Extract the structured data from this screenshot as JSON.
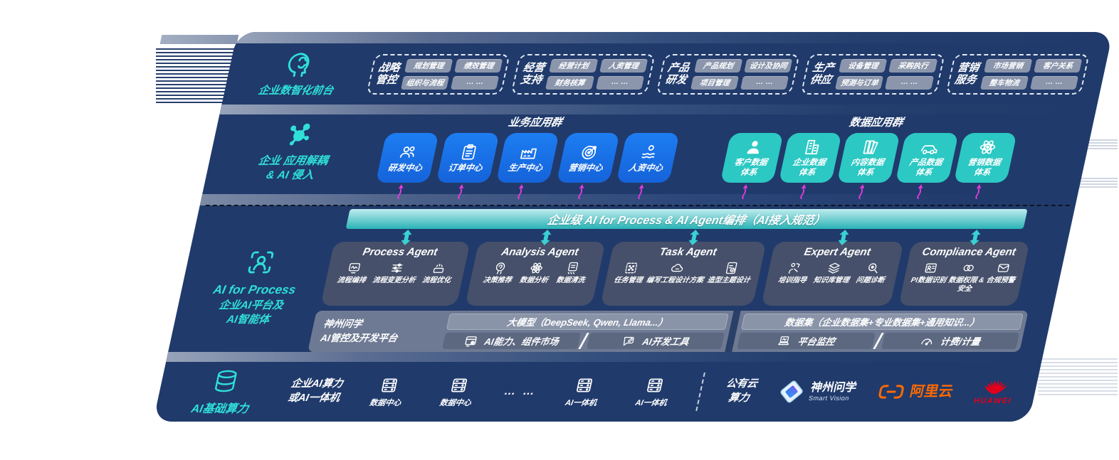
{
  "colors": {
    "accent_teal": "#2fe0d8",
    "box_blue": "#1b74ec",
    "box_teal": "#2cc8c3",
    "banner_teal": "#2ab3b6",
    "arrow_pink": "#e33bdd",
    "navy": "#203a6b",
    "aliyun_orange": "#ff6a00",
    "huawei_red": "#e2001a"
  },
  "front": {
    "label": "企业数智化前台",
    "groups": [
      {
        "name": "战略\n管控",
        "chips": [
          "规划管理",
          "绩效管理",
          "组织与流程",
          "… …"
        ]
      },
      {
        "name": "经营\n支持",
        "chips": [
          "经营计划",
          "人资管理",
          "财务核算",
          "… …"
        ]
      },
      {
        "name": "产品\n研发",
        "chips": [
          "产品规划",
          "设计及协同",
          "项目管理",
          "… …"
        ]
      },
      {
        "name": "生产\n供应",
        "chips": [
          "设备管理",
          "采购执行",
          "预测与订单",
          "… …"
        ]
      },
      {
        "name": "营销\n服务",
        "chips": [
          "市场营销",
          "客户关系",
          "整车物流",
          "… …"
        ]
      }
    ]
  },
  "apps": {
    "label": "企业 应用解耦\n& AI 侵入",
    "business": {
      "title": "业务应用群",
      "items": [
        {
          "label": "研发中心"
        },
        {
          "label": "订单中心"
        },
        {
          "label": "生产中心"
        },
        {
          "label": "营销中心"
        },
        {
          "label": "人资中心"
        }
      ]
    },
    "data": {
      "title": "数据应用群",
      "items": [
        {
          "label": "客户数据\n体系"
        },
        {
          "label": "企业数据\n体系"
        },
        {
          "label": "内容数据\n体系"
        },
        {
          "label": "产品数据\n体系"
        },
        {
          "label": "营销数据\n体系"
        }
      ]
    }
  },
  "banner": {
    "text": "企业级 AI for Process & AI Agent编排（AI接入规范）"
  },
  "ai": {
    "label_title": "AI for Process",
    "label_sub": "企业AI平台及\nAI智能体",
    "agents": [
      {
        "title": "Process Agent",
        "items": [
          {
            "label": "流程编排"
          },
          {
            "label": "流程变更分析"
          },
          {
            "label": "流程优化"
          }
        ]
      },
      {
        "title": "Analysis Agent",
        "items": [
          {
            "label": "决策推荐"
          },
          {
            "label": "数据分析"
          },
          {
            "label": "数据清洗"
          }
        ]
      },
      {
        "title": "Task Agent",
        "items": [
          {
            "label": "任务管理"
          },
          {
            "label": "编写工程设计方案"
          },
          {
            "label": "造型主题设计"
          }
        ]
      },
      {
        "title": "Expert Agent",
        "items": [
          {
            "label": "培训指导"
          },
          {
            "label": "知识库管理"
          },
          {
            "label": "问题诊断"
          }
        ]
      },
      {
        "title": "Compliance Agent",
        "items": [
          {
            "label": "PI数据识别"
          },
          {
            "label": "数据权限 &\n安全"
          },
          {
            "label": "合规预警"
          }
        ]
      }
    ]
  },
  "platform": {
    "name": "神州问学\nAI管控及开发平台",
    "model_bar": "大模型（DeepSeek, Qwen, Llama...）",
    "left_cells": [
      {
        "label": "AI能力、组件市场"
      },
      {
        "label": "AI开发工具"
      }
    ],
    "dataset_bar": "数据集（企业数据集+专业数据集+通用知识...）",
    "right_cells": [
      {
        "label": "平台监控"
      },
      {
        "label": "计费/计量"
      }
    ]
  },
  "infra": {
    "label": "AI基础算力",
    "compute": "企业AI算力\n或AI一体机",
    "nodes": [
      {
        "label": "数据中心"
      },
      {
        "label": "数据中心"
      }
    ],
    "dots": "… …",
    "nodes2": [
      {
        "label": "AI一体机"
      },
      {
        "label": "AI一体机"
      }
    ],
    "cloud": "公有云\n算力",
    "logos": {
      "sv_name": "神州问学",
      "sv_sub": "Smart Vision",
      "aliyun": "阿里云",
      "huawei": "HUAWEI"
    }
  }
}
